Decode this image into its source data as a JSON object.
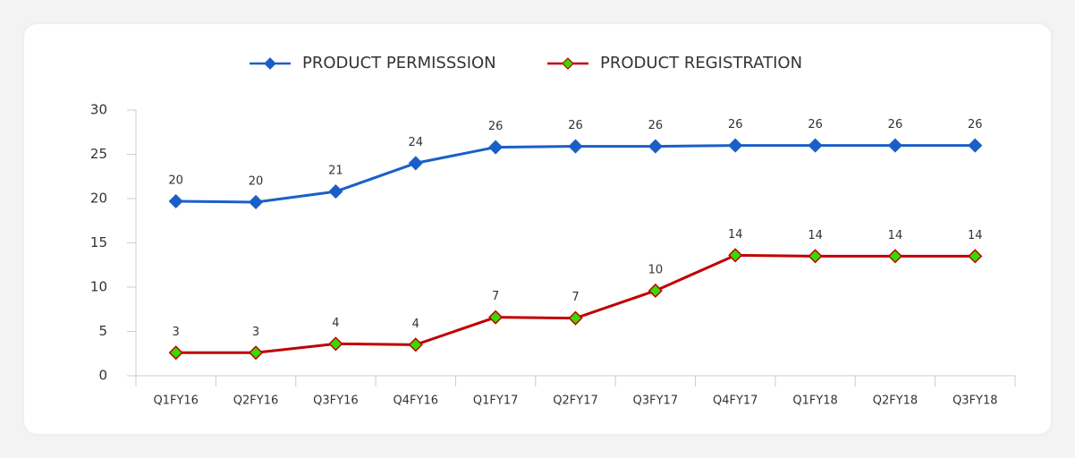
{
  "chart_data": {
    "type": "line",
    "categories": [
      "Q1FY16",
      "Q2FY16",
      "Q3FY16",
      "Q4FY16",
      "Q1FY17",
      "Q2FY17",
      "Q3FY17",
      "Q4FY17",
      "Q1FY18",
      "Q2FY18",
      "Q3FY18"
    ],
    "series": [
      {
        "name": "PRODUCT PERMISSSION",
        "color": "#1a5fc8",
        "marker_fill": "#1a5fc8",
        "values": [
          19.7,
          19.6,
          20.8,
          24.0,
          25.8,
          25.9,
          25.9,
          26.0,
          26.0,
          26.0,
          26.0
        ],
        "value_labels": [
          "20",
          "20",
          "21",
          "24",
          "26",
          "26",
          "26",
          "26",
          "26",
          "26",
          "26"
        ]
      },
      {
        "name": "PRODUCT REGISTRATION",
        "color": "#c00000",
        "marker_fill": "#33dd00",
        "values": [
          2.6,
          2.6,
          3.6,
          3.5,
          6.6,
          6.5,
          9.6,
          13.6,
          13.5,
          13.5,
          13.5
        ],
        "value_labels": [
          "3",
          "3",
          "4",
          "4",
          "7",
          "7",
          "10",
          "14",
          "14",
          "14",
          "14"
        ]
      }
    ],
    "ylim": [
      0,
      30
    ],
    "yticks": [
      0,
      5,
      10,
      15,
      20,
      25,
      30
    ],
    "grid": false
  }
}
